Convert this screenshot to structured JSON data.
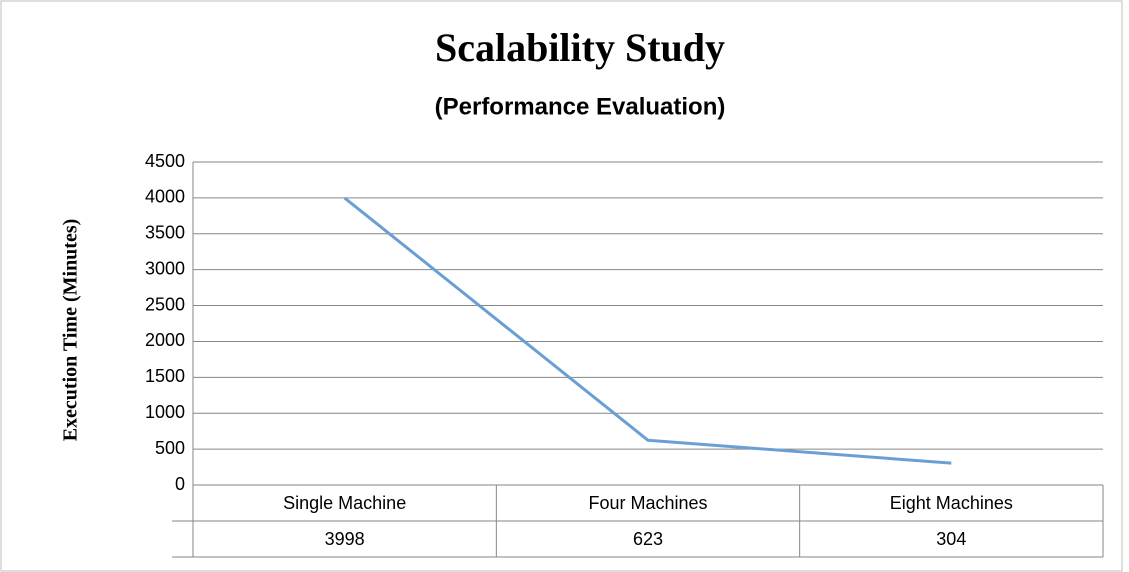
{
  "chart_data": {
    "type": "line",
    "title": "Scalability Study",
    "subtitle": "(Performance Evaluation)",
    "y_label": "Execution Time (Minutes)",
    "categories": [
      "Single Machine",
      "Four Machines",
      "Eight Machines"
    ],
    "values": [
      3998,
      623,
      304
    ],
    "color": "#6a9fd4",
    "ylim": [
      0,
      4500
    ],
    "yticks": [
      0,
      500,
      1000,
      1500,
      2000,
      2500,
      3000,
      3500,
      4000,
      4500
    ],
    "grid": true,
    "data_table": true
  }
}
